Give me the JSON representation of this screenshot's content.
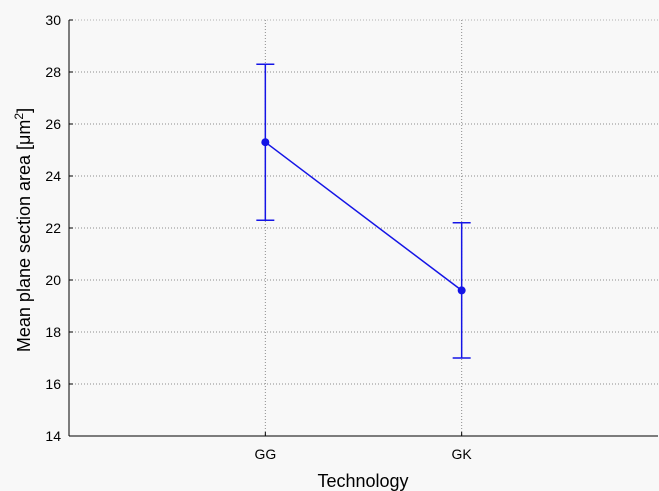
{
  "chart_data": {
    "type": "line",
    "xlabel": "Technology",
    "ylabel": "Mean plane section area [μm²]",
    "ylabel_parts": {
      "main": "Mean plane section area [μm",
      "sup": "2",
      "close": "]"
    },
    "categories": [
      "GG",
      "GK"
    ],
    "ylim": [
      14,
      30
    ],
    "yticks": [
      14,
      16,
      18,
      20,
      22,
      24,
      26,
      28,
      30
    ],
    "series": [
      {
        "values": [
          25.3,
          19.6
        ],
        "error_low": [
          22.3,
          17.0
        ],
        "error_high": [
          28.3,
          22.2
        ]
      }
    ],
    "grid": true,
    "colors": {
      "series": "#1414e6",
      "grid": "#8c8c8c",
      "axis": "#000000",
      "plot_bg": "#f8f8f8"
    }
  }
}
